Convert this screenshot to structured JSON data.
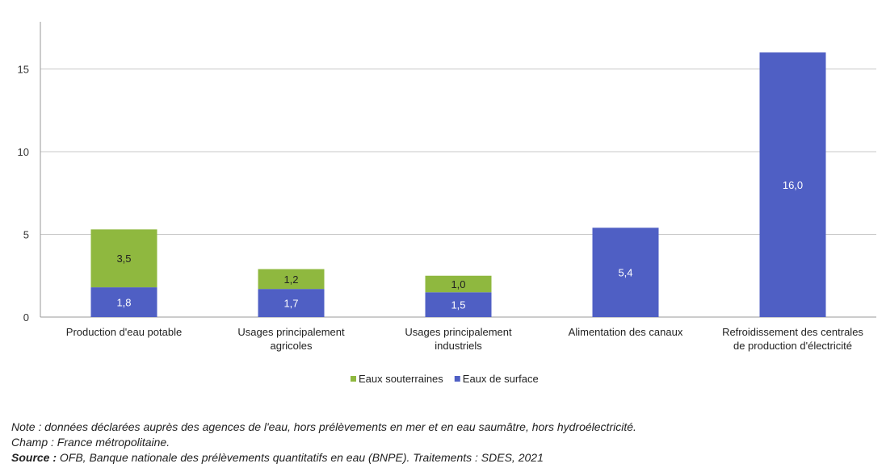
{
  "chart_data": {
    "type": "bar",
    "stacked": true,
    "categories": [
      [
        "Production d'eau potable"
      ],
      [
        "Usages principalement",
        "agricoles"
      ],
      [
        "Usages principalement",
        "industriels"
      ],
      [
        "Alimentation des canaux"
      ],
      [
        "Refroidissement des centrales",
        "de production d'électricité"
      ]
    ],
    "series": [
      {
        "name": "Eaux de surface",
        "color": "#4f5fc4",
        "values": [
          1.8,
          1.7,
          1.5,
          5.4,
          16.0
        ],
        "labels": [
          "1,8",
          "1,7",
          "1,5",
          "5,4",
          "16,0"
        ]
      },
      {
        "name": "Eaux souterraines",
        "color": "#8fb83f",
        "values": [
          3.5,
          1.2,
          1.0,
          null,
          null
        ],
        "labels": [
          "3,5",
          "1,2",
          "1,0",
          "",
          ""
        ]
      }
    ],
    "legend_order": [
      "Eaux souterraines",
      "Eaux de surface"
    ],
    "ylim": [
      0,
      18
    ],
    "yticks": [
      0,
      5,
      10,
      15
    ],
    "grid": true,
    "legend": "bottom-center"
  },
  "notes": {
    "note": "Note : données déclarées auprès des agences de l'eau, hors prélèvements en mer et en eau saumâtre, hors hydroélectricité.",
    "champ": "Champ : France métropolitaine.",
    "source_label": "Source :",
    "source_text": " OFB, Banque nationale des prélèvements quantitatifs en eau (BNPE). Traitements : SDES, 2021"
  }
}
